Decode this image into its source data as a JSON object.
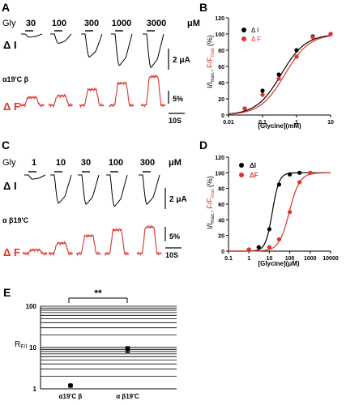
{
  "colors": {
    "black": "#000000",
    "red": "#e0312a",
    "grid": "#000000"
  },
  "panels": {
    "A": {
      "letter": "A",
      "gly_label": "Gly",
      "unit": "μM",
      "concentrations": [
        "30",
        "100",
        "300",
        "1000",
        "3000"
      ],
      "current_label": "Δ I",
      "fluor_label": "Δ F",
      "construct": "α19'C β",
      "current_scale": "2 μA",
      "fluor_scale": "5%",
      "time_scale": "10S",
      "current_amplitude_uA": [
        0.3,
        0.9,
        2.2,
        3.0,
        3.2
      ],
      "fluor_amplitude_pct": [
        3.0,
        3.6,
        6.0,
        8.4,
        11.0
      ]
    },
    "C": {
      "letter": "C",
      "gly_label": "Gly",
      "unit": "μM",
      "concentrations": [
        "1",
        "10",
        "30",
        "100",
        "300"
      ],
      "current_label": "Δ I",
      "fluor_label": "Δ F",
      "construct": "α β19'C",
      "current_scale": "2 μA",
      "fluor_scale": "5%",
      "time_scale": "10S",
      "current_amplitude_uA": [
        0.4,
        2.7,
        2.8,
        3.0,
        2.8
      ],
      "fluor_amplitude_pct": [
        1.2,
        3.5,
        6.0,
        8.0,
        9.0
      ]
    },
    "E": {
      "letter": "E",
      "significance": "**"
    }
  },
  "chart_data": [
    {
      "id": "B",
      "letter": "B",
      "type": "scatter",
      "xscale": "log",
      "xlim": [
        0.01,
        10
      ],
      "ylim": [
        0,
        120
      ],
      "xticks": [
        "0.01",
        "0.1",
        "1",
        "10"
      ],
      "yticks": [
        "0",
        "20",
        "40",
        "60",
        "80",
        "100",
        "120"
      ],
      "xlabel": "[Glycine](mM)",
      "ylabel_black": "I/I",
      "ylabel_black_sub": "max.",
      "ylabel_sep": ",",
      "ylabel_red": "F/F",
      "ylabel_red_sub": "max",
      "ylabel_unit": "(%)",
      "legend": [
        {
          "label": "Δ I",
          "color": "#000000"
        },
        {
          "label": "Δ F",
          "color": "#e0312a"
        }
      ],
      "series": [
        {
          "name": "Δ I",
          "color": "#000000",
          "x": [
            0.03,
            0.1,
            0.3,
            1,
            3,
            10
          ],
          "y": [
            8,
            30,
            50,
            80,
            97,
            100
          ],
          "fit": {
            "ec50": 0.35,
            "n": 1.2
          }
        },
        {
          "name": "Δ F",
          "color": "#e0312a",
          "x": [
            0.03,
            0.1,
            0.3,
            1,
            3,
            10
          ],
          "y": [
            8,
            25,
            45,
            72,
            96,
            100
          ],
          "fit": {
            "ec50": 0.45,
            "n": 1.2
          }
        }
      ]
    },
    {
      "id": "D",
      "letter": "D",
      "type": "scatter",
      "xscale": "log",
      "xlim": [
        0.1,
        10000
      ],
      "ylim": [
        0,
        120
      ],
      "xticks": [
        "0.1",
        "1",
        "10",
        "100",
        "1000",
        "10000"
      ],
      "yticks": [
        "0",
        "20",
        "40",
        "60",
        "80",
        "100",
        "120"
      ],
      "xlabel": "[Glycine](μM)",
      "ylabel_black": "I/I",
      "ylabel_black_sub": "max.",
      "ylabel_sep": ",",
      "ylabel_red": "F/F",
      "ylabel_red_sub": "max",
      "ylabel_unit": "(%)",
      "legend": [
        {
          "label": "ΔI",
          "color": "#000000"
        },
        {
          "label": "ΔF",
          "color": "#e0312a"
        }
      ],
      "series": [
        {
          "name": "ΔI",
          "color": "#000000",
          "x": [
            1,
            3,
            10,
            30,
            100,
            300
          ],
          "y": [
            2,
            5,
            28,
            85,
            98,
            100
          ],
          "fit": {
            "ec50": 14,
            "n": 2.6
          }
        },
        {
          "name": "ΔF",
          "color": "#e0312a",
          "x": [
            1,
            10,
            30,
            100,
            300,
            1000
          ],
          "y": [
            2,
            5,
            15,
            50,
            88,
            100
          ],
          "fit": {
            "ec50": 95,
            "n": 1.7
          }
        }
      ]
    },
    {
      "id": "E",
      "letter": "E",
      "type": "scatter",
      "yscale": "log",
      "ylim": [
        1,
        100
      ],
      "yticks": [
        "1",
        "10",
        "100"
      ],
      "ylabel": "R",
      "ylabel_sub": "F/I",
      "categories": [
        "α19'C β",
        "α β19'C"
      ],
      "values": [
        1.2,
        9.0
      ],
      "errors": [
        0.1,
        1.5
      ]
    }
  ]
}
